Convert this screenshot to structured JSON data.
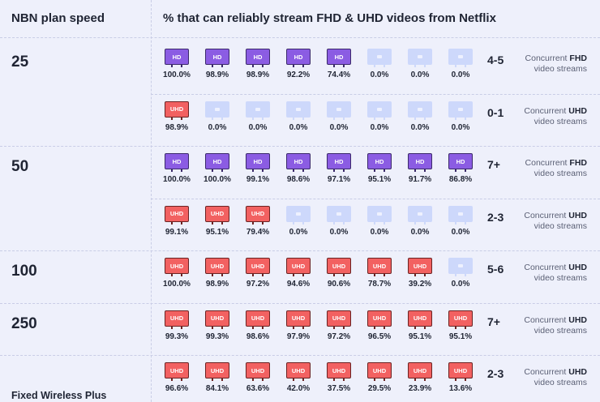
{
  "header": {
    "col1": "NBN plan speed",
    "col2": "% that can reliably stream FHD & UHD videos from Netflix"
  },
  "colors": {
    "fhd": "#8b5ce3",
    "uhd": "#f26161",
    "off": "#cdd8fb"
  },
  "chart_data": {
    "type": "table",
    "title": "% that can reliably stream FHD & UHD videos from Netflix",
    "row_header": "NBN plan speed",
    "groups": [
      {
        "speed": "25",
        "rows": [
          {
            "type": "FHD",
            "tv_label": "HD",
            "concurrent": "4-5",
            "desc_prefix": "Concurrent",
            "desc_type": "FHD",
            "desc_suffix": "video streams",
            "values": [
              "100.0%",
              "98.9%",
              "98.9%",
              "92.2%",
              "74.4%",
              "0.0%",
              "0.0%",
              "0.0%"
            ]
          },
          {
            "type": "UHD",
            "tv_label": "UHD",
            "concurrent": "0-1",
            "desc_prefix": "Concurrent",
            "desc_type": "UHD",
            "desc_suffix": "video streams",
            "values": [
              "98.9%",
              "0.0%",
              "0.0%",
              "0.0%",
              "0.0%",
              "0.0%",
              "0.0%",
              "0.0%"
            ]
          }
        ]
      },
      {
        "speed": "50",
        "rows": [
          {
            "type": "FHD",
            "tv_label": "HD",
            "concurrent": "7+",
            "desc_prefix": "Concurrent",
            "desc_type": "FHD",
            "desc_suffix": "video streams",
            "values": [
              "100.0%",
              "100.0%",
              "99.1%",
              "98.6%",
              "97.1%",
              "95.1%",
              "91.7%",
              "86.8%"
            ]
          },
          {
            "type": "UHD",
            "tv_label": "UHD",
            "concurrent": "2-3",
            "desc_prefix": "Concurrent",
            "desc_type": "UHD",
            "desc_suffix": "video streams",
            "values": [
              "99.1%",
              "95.1%",
              "79.4%",
              "0.0%",
              "0.0%",
              "0.0%",
              "0.0%",
              "0.0%"
            ]
          }
        ]
      },
      {
        "speed": "100",
        "rows": [
          {
            "type": "UHD",
            "tv_label": "UHD",
            "concurrent": "5-6",
            "desc_prefix": "Concurrent",
            "desc_type": "UHD",
            "desc_suffix": "video streams",
            "values": [
              "100.0%",
              "98.9%",
              "97.2%",
              "94.6%",
              "90.6%",
              "78.7%",
              "39.2%",
              "0.0%"
            ]
          }
        ]
      },
      {
        "speed": "250",
        "rows": [
          {
            "type": "UHD",
            "tv_label": "UHD",
            "concurrent": "7+",
            "desc_prefix": "Concurrent",
            "desc_type": "UHD",
            "desc_suffix": "video streams",
            "values": [
              "99.3%",
              "99.3%",
              "98.6%",
              "97.9%",
              "97.2%",
              "96.5%",
              "95.1%",
              "95.1%"
            ]
          }
        ]
      },
      {
        "speed": "Fixed Wireless Plus",
        "rows": [
          {
            "type": "UHD",
            "tv_label": "UHD",
            "concurrent": "2-3",
            "desc_prefix": "Concurrent",
            "desc_type": "UHD",
            "desc_suffix": "video streams",
            "values": [
              "96.6%",
              "84.1%",
              "63.6%",
              "42.0%",
              "37.5%",
              "29.5%",
              "23.9%",
              "13.6%"
            ]
          }
        ]
      }
    ]
  }
}
